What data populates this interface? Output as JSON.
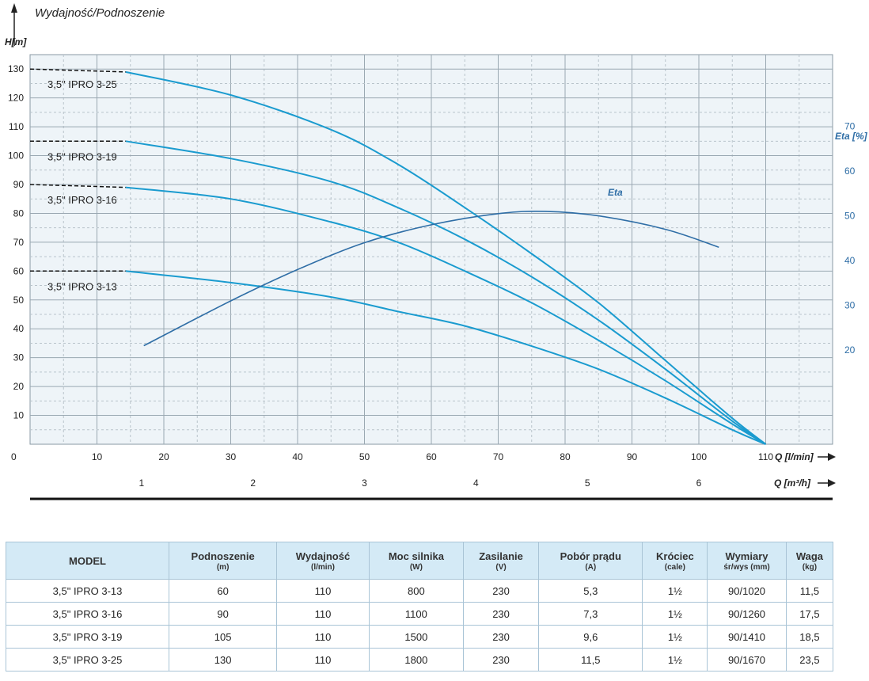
{
  "chart_data": {
    "type": "line",
    "title": "Wydajność/Podnoszenie",
    "ylabel": "H[m]",
    "xlabel": "Q [l/min]",
    "x2label": "Q [m³/h]",
    "y2label": "Eta [%]",
    "xlim": [
      0,
      120
    ],
    "ylim": [
      0,
      135
    ],
    "x_ticks": [
      0,
      10,
      20,
      30,
      40,
      50,
      60,
      70,
      80,
      90,
      100,
      110
    ],
    "y_ticks": [
      10,
      20,
      30,
      40,
      50,
      60,
      70,
      80,
      90,
      100,
      110,
      120,
      130
    ],
    "x2_ticks": [
      1,
      2,
      3,
      4,
      5,
      6
    ],
    "y2_ticks": [
      20,
      30,
      40,
      50,
      60,
      70
    ],
    "grid": true,
    "series": [
      {
        "name": "3,5\" IPRO 3-25",
        "color": "#1a9bcf",
        "x": [
          0,
          14.3,
          30,
          45,
          55,
          65,
          75,
          85,
          95,
          105,
          110
        ],
        "y": [
          130,
          129,
          121,
          109,
          97,
          82,
          66,
          49,
          29,
          9,
          0
        ]
      },
      {
        "name": "3,5\" IPRO 3-19",
        "color": "#1a9bcf",
        "x": [
          0,
          14.3,
          30,
          45,
          55,
          65,
          75,
          85,
          95,
          105,
          110
        ],
        "y": [
          105,
          105,
          99,
          91,
          82,
          71,
          58,
          43,
          26,
          8,
          0
        ]
      },
      {
        "name": "3,5\" IPRO 3-16",
        "color": "#1a9bcf",
        "x": [
          0,
          14.3,
          30,
          45,
          55,
          65,
          75,
          85,
          95,
          105,
          110
        ],
        "y": [
          90,
          89,
          85,
          77,
          70,
          60,
          49,
          36,
          22,
          7,
          0
        ]
      },
      {
        "name": "3,5\" IPRO 3-13",
        "color": "#1a9bcf",
        "x": [
          0,
          14.3,
          30,
          45,
          55,
          65,
          75,
          85,
          95,
          105,
          110
        ],
        "y": [
          60,
          60,
          56,
          51,
          46,
          41,
          34,
          26,
          16,
          5,
          0
        ]
      },
      {
        "name": "Eta",
        "axis": "right",
        "color": "#2f6ea6",
        "x": [
          17,
          30,
          40,
          50,
          60,
          70,
          77,
          85,
          95,
          103
        ],
        "y": [
          21,
          31,
          38,
          44,
          48,
          50.5,
          51,
          50,
          47,
          43
        ]
      }
    ],
    "y2lim": [
      -1,
      86
    ]
  },
  "table": {
    "headers": [
      {
        "label": "MODEL",
        "unit": ""
      },
      {
        "label": "Podnoszenie",
        "unit": "(m)"
      },
      {
        "label": "Wydajność",
        "unit": "(l/min)"
      },
      {
        "label": "Moc silnika",
        "unit": "(W)"
      },
      {
        "label": "Zasilanie",
        "unit": "(V)"
      },
      {
        "label": "Pobór prądu",
        "unit": "(A)"
      },
      {
        "label": "Króciec",
        "unit": "(cale)"
      },
      {
        "label": "Wymiary",
        "unit": "śr/wys (mm)"
      },
      {
        "label": "Waga",
        "unit": "(kg)"
      }
    ],
    "rows": [
      [
        "3,5\" IPRO 3-13",
        "60",
        "110",
        "800",
        "230",
        "5,3",
        "1½",
        "90/1020",
        "11,5"
      ],
      [
        "3,5\" IPRO 3-16",
        "90",
        "110",
        "1100",
        "230",
        "7,3",
        "1½",
        "90/1260",
        "17,5"
      ],
      [
        "3,5\" IPRO 3-19",
        "105",
        "110",
        "1500",
        "230",
        "9,6",
        "1½",
        "90/1410",
        "18,5"
      ],
      [
        "3,5\" IPRO 3-25",
        "130",
        "110",
        "1800",
        "230",
        "11,5",
        "1½",
        "90/1670",
        "23,5"
      ]
    ]
  }
}
